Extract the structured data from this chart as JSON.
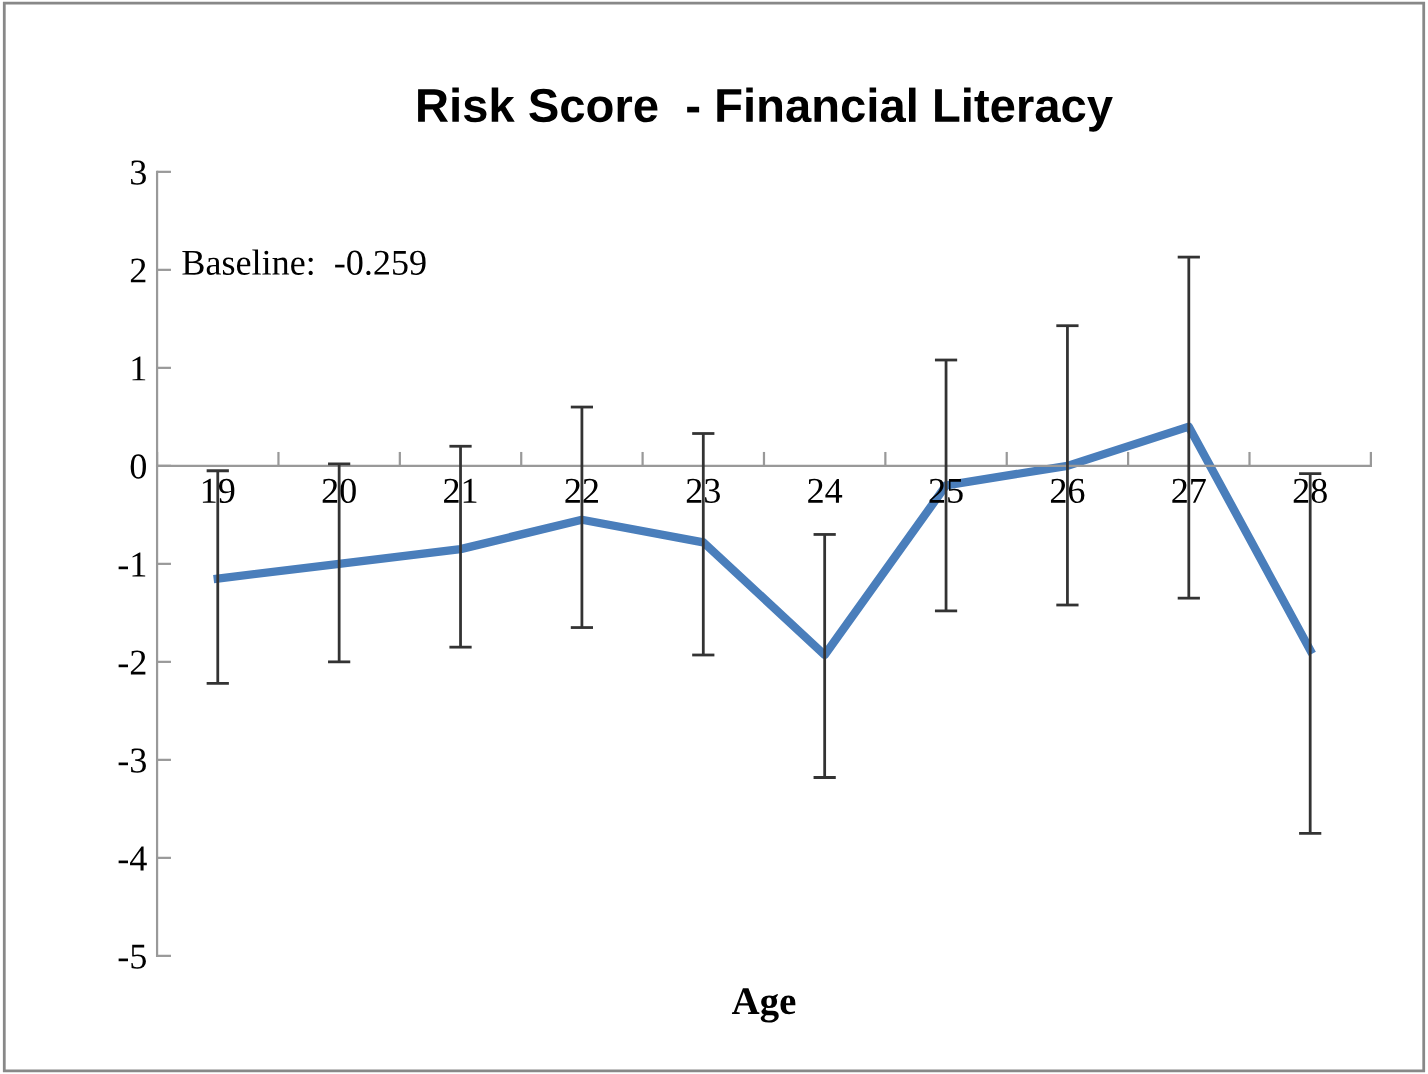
{
  "chart_data": {
    "type": "line",
    "title": "Risk Score  - Financial Literacy",
    "xlabel": "Age",
    "categories": [
      "19",
      "20",
      "21",
      "22",
      "23",
      "24",
      "25",
      "26",
      "27",
      "28"
    ],
    "series": [
      {
        "color": "#4a7ebb",
        "values": [
          -1.15,
          -1.0,
          -0.85,
          -0.55,
          -0.78,
          -1.93,
          -0.2,
          0.0,
          0.4,
          -1.88
        ],
        "errors": [
          [
            -2.22,
            -0.05
          ],
          [
            -2.0,
            0.02
          ],
          [
            -1.85,
            0.2
          ],
          [
            -1.65,
            0.6
          ],
          [
            -1.93,
            0.33
          ],
          [
            -3.18,
            -0.7
          ],
          [
            -1.48,
            1.08
          ],
          [
            -1.42,
            1.43
          ],
          [
            -1.35,
            2.13
          ],
          [
            -3.75,
            -0.08
          ]
        ]
      }
    ],
    "ylim": [
      -5,
      3
    ],
    "yticks": [
      -5,
      -4,
      -3,
      -2,
      -1,
      0,
      1,
      2,
      3
    ],
    "annotations": [
      "Baseline:  -0.259"
    ],
    "grid": false,
    "legend": false,
    "marker": "none",
    "line_style": "solid"
  }
}
